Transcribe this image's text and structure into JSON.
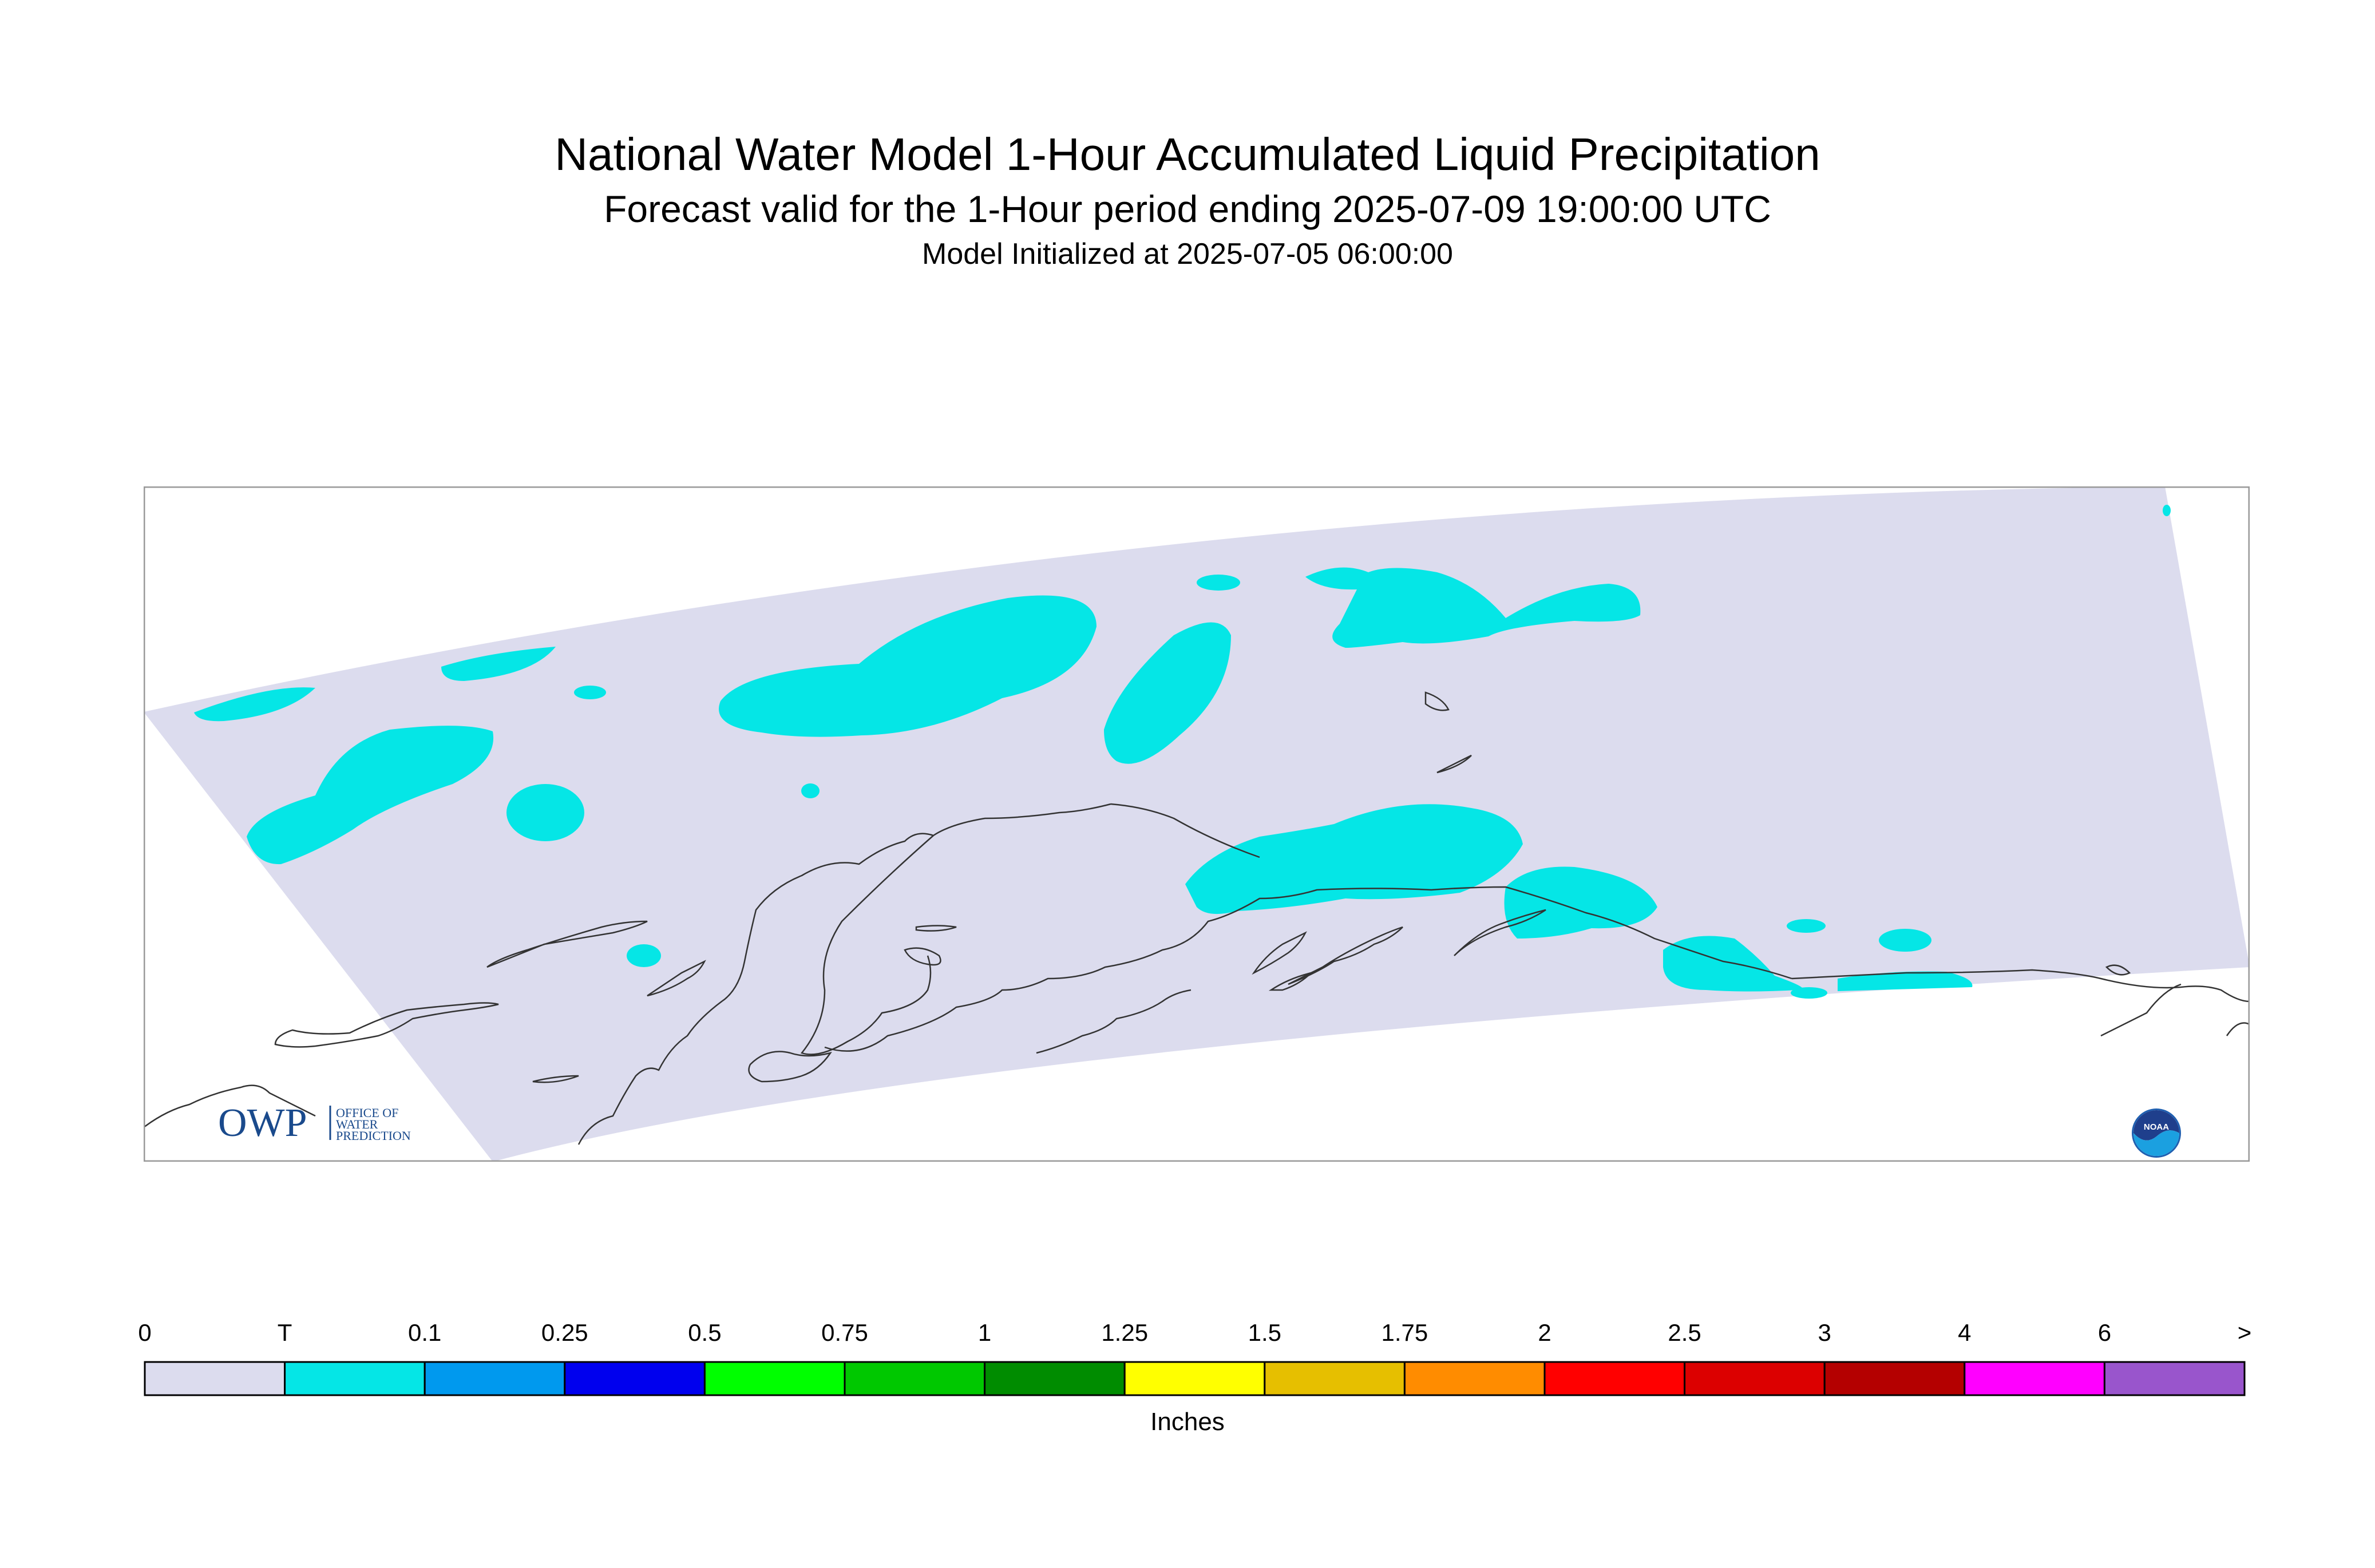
{
  "header": {
    "title": "National Water Model 1-Hour Accumulated Liquid Precipitation",
    "subtitle": "Forecast valid for the 1-Hour period ending 2025-07-09 19:00:00 UTC",
    "initialized": "Model Initialized at 2025-07-05 06:00:00"
  },
  "logos": {
    "owp_letters": "OWP",
    "owp_text": [
      "OFFICE OF",
      "WATER",
      "PREDICTION"
    ],
    "noaa_text": "NOAA"
  },
  "colors": {
    "domain": "#dcdcee",
    "trace": "#05e6e6",
    "coast": "#333333",
    "frame": "#999999",
    "owp_blue": "#1a4a8c"
  },
  "legend": {
    "units": "Inches",
    "ticks": [
      "0",
      "T",
      "0.1",
      "0.25",
      "0.5",
      "0.75",
      "1",
      "1.25",
      "1.5",
      "1.75",
      "2",
      "2.5",
      "3",
      "4",
      "6",
      ">"
    ],
    "bins": [
      {
        "from": "0",
        "to": "T",
        "color": "#dcdcee"
      },
      {
        "from": "T",
        "to": "0.1",
        "color": "#05e6e6"
      },
      {
        "from": "0.1",
        "to": "0.25",
        "color": "#0099ee"
      },
      {
        "from": "0.25",
        "to": "0.5",
        "color": "#0000ee"
      },
      {
        "from": "0.5",
        "to": "0.75",
        "color": "#00ff00"
      },
      {
        "from": "0.75",
        "to": "1",
        "color": "#00c800"
      },
      {
        "from": "1",
        "to": "1.25",
        "color": "#008c00"
      },
      {
        "from": "1.25",
        "to": "1.5",
        "color": "#ffff00"
      },
      {
        "from": "1.5",
        "to": "1.75",
        "color": "#e6bf00"
      },
      {
        "from": "1.75",
        "to": "2",
        "color": "#ff8c00"
      },
      {
        "from": "2",
        "to": "2.5",
        "color": "#ff0000"
      },
      {
        "from": "2.5",
        "to": "3",
        "color": "#dc0000"
      },
      {
        "from": "3",
        "to": "4",
        "color": "#b40000"
      },
      {
        "from": "4",
        "to": "6",
        "color": "#ff00ff"
      },
      {
        "from": "6",
        "to": ">",
        "color": "#9955cc"
      }
    ]
  }
}
